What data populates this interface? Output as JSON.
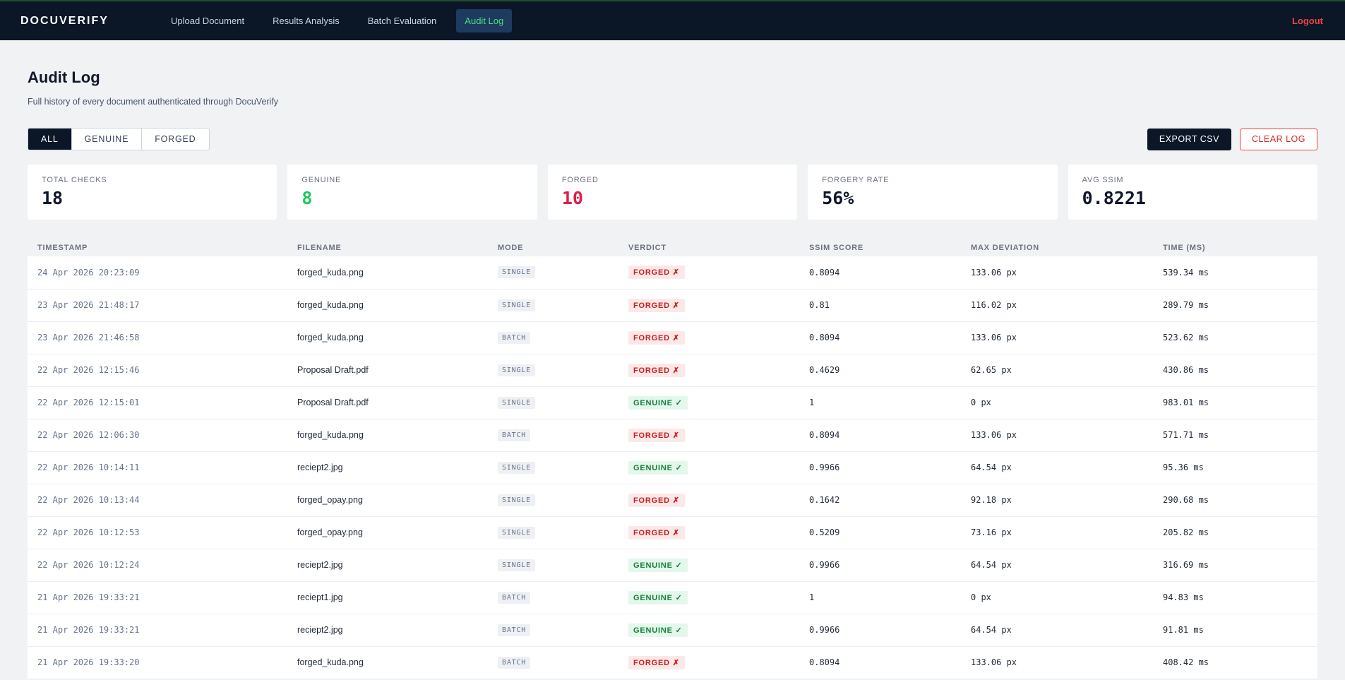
{
  "nav": {
    "brand": "DOCUVERIFY",
    "tabs": [
      {
        "label": "Upload Document"
      },
      {
        "label": "Results Analysis"
      },
      {
        "label": "Batch Evaluation"
      },
      {
        "label": "Audit Log"
      }
    ],
    "active_tab": "Audit Log",
    "logout_label": "Logout"
  },
  "header": {
    "title": "Audit Log",
    "subtitle": "Full history of every document authenticated through DocuVerify"
  },
  "filters": [
    {
      "label": "ALL",
      "active": true
    },
    {
      "label": "GENUINE",
      "active": false
    },
    {
      "label": "FORGED",
      "active": false
    }
  ],
  "actions": {
    "export_label": "EXPORT CSV",
    "clear_label": "CLEAR LOG"
  },
  "stats": [
    {
      "label": "TOTAL CHECKS",
      "value": "18",
      "tone": ""
    },
    {
      "label": "GENUINE",
      "value": "8",
      "tone": "green"
    },
    {
      "label": "FORGED",
      "value": "10",
      "tone": "red"
    },
    {
      "label": "FORGERY RATE",
      "value": "56%",
      "tone": ""
    },
    {
      "label": "AVG SSIM",
      "value": "0.8221",
      "tone": ""
    }
  ],
  "table": {
    "columns": [
      "TIMESTAMP",
      "FILENAME",
      "MODE",
      "VERDICT",
      "SSIM SCORE",
      "MAX DEVIATION",
      "TIME (MS)"
    ],
    "rows": [
      {
        "timestamp": "24 Apr 2026 20:23:09",
        "filename": "forged_kuda.png",
        "mode": "SINGLE",
        "verdict": "FORGED ✗",
        "verdict_type": "forged",
        "ssim": "0.8094",
        "deviation": "133.06 px",
        "time": "539.34 ms"
      },
      {
        "timestamp": "23 Apr 2026 21:48:17",
        "filename": "forged_kuda.png",
        "mode": "SINGLE",
        "verdict": "FORGED ✗",
        "verdict_type": "forged",
        "ssim": "0.81",
        "deviation": "116.02 px",
        "time": "289.79 ms"
      },
      {
        "timestamp": "23 Apr 2026 21:46:58",
        "filename": "forged_kuda.png",
        "mode": "BATCH",
        "verdict": "FORGED ✗",
        "verdict_type": "forged",
        "ssim": "0.8094",
        "deviation": "133.06 px",
        "time": "523.62 ms"
      },
      {
        "timestamp": "22 Apr 2026 12:15:46",
        "filename": "Proposal Draft.pdf",
        "mode": "SINGLE",
        "verdict": "FORGED ✗",
        "verdict_type": "forged",
        "ssim": "0.4629",
        "deviation": "62.65 px",
        "time": "430.86 ms"
      },
      {
        "timestamp": "22 Apr 2026 12:15:01",
        "filename": "Proposal Draft.pdf",
        "mode": "SINGLE",
        "verdict": "GENUINE ✓",
        "verdict_type": "genuine",
        "ssim": "1",
        "deviation": "0 px",
        "time": "983.01 ms"
      },
      {
        "timestamp": "22 Apr 2026 12:06:30",
        "filename": "forged_kuda.png",
        "mode": "BATCH",
        "verdict": "FORGED ✗",
        "verdict_type": "forged",
        "ssim": "0.8094",
        "deviation": "133.06 px",
        "time": "571.71 ms"
      },
      {
        "timestamp": "22 Apr 2026 10:14:11",
        "filename": "reciept2.jpg",
        "mode": "SINGLE",
        "verdict": "GENUINE ✓",
        "verdict_type": "genuine",
        "ssim": "0.9966",
        "deviation": "64.54 px",
        "time": "95.36 ms"
      },
      {
        "timestamp": "22 Apr 2026 10:13:44",
        "filename": "forged_opay.png",
        "mode": "SINGLE",
        "verdict": "FORGED ✗",
        "verdict_type": "forged",
        "ssim": "0.1642",
        "deviation": "92.18 px",
        "time": "290.68 ms"
      },
      {
        "timestamp": "22 Apr 2026 10:12:53",
        "filename": "forged_opay.png",
        "mode": "SINGLE",
        "verdict": "FORGED ✗",
        "verdict_type": "forged",
        "ssim": "0.5209",
        "deviation": "73.16 px",
        "time": "205.82 ms"
      },
      {
        "timestamp": "22 Apr 2026 10:12:24",
        "filename": "reciept2.jpg",
        "mode": "SINGLE",
        "verdict": "GENUINE ✓",
        "verdict_type": "genuine",
        "ssim": "0.9966",
        "deviation": "64.54 px",
        "time": "316.69 ms"
      },
      {
        "timestamp": "21 Apr 2026 19:33:21",
        "filename": "reciept1.jpg",
        "mode": "BATCH",
        "verdict": "GENUINE ✓",
        "verdict_type": "genuine",
        "ssim": "1",
        "deviation": "0 px",
        "time": "94.83 ms"
      },
      {
        "timestamp": "21 Apr 2026 19:33:21",
        "filename": "reciept2.jpg",
        "mode": "BATCH",
        "verdict": "GENUINE ✓",
        "verdict_type": "genuine",
        "ssim": "0.9966",
        "deviation": "64.54 px",
        "time": "91.81 ms"
      },
      {
        "timestamp": "21 Apr 2026 19:33:20",
        "filename": "forged_kuda.png",
        "mode": "BATCH",
        "verdict": "FORGED ✗",
        "verdict_type": "forged",
        "ssim": "0.8094",
        "deviation": "133.06 px",
        "time": "408.42 ms"
      }
    ]
  }
}
